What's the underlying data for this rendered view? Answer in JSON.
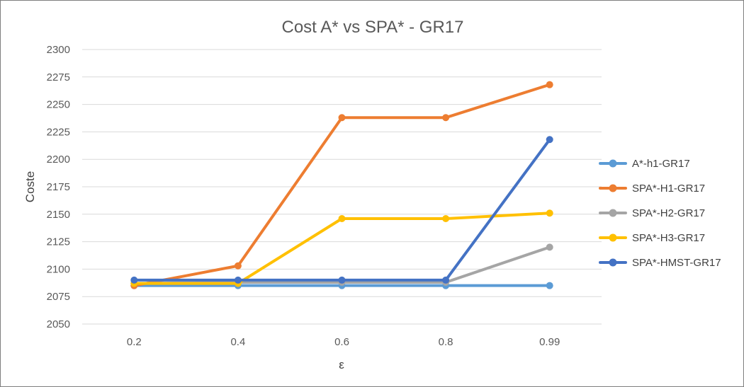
{
  "chart_data": {
    "type": "line",
    "title": "Cost A* vs SPA* - GR17",
    "xlabel": "ε",
    "ylabel": "Coste",
    "categories": [
      "0.2",
      "0.4",
      "0.6",
      "0.8",
      "0.99"
    ],
    "ylim": [
      2050,
      2300
    ],
    "yticks": [
      "2050",
      "2075",
      "2100",
      "2125",
      "2150",
      "2175",
      "2200",
      "2225",
      "2250",
      "2275",
      "2300"
    ],
    "grid": true,
    "legend_position": "right",
    "series": [
      {
        "name": "A*-h1-GR17",
        "color": "#5b9bd5",
        "values": [
          2085,
          2085,
          2085,
          2085,
          2085
        ]
      },
      {
        "name": "SPA*-H1-GR17",
        "color": "#ed7d31",
        "values": [
          2085,
          2103,
          2238,
          2238,
          2268
        ]
      },
      {
        "name": "SPA*-H2-GR17",
        "color": "#a5a5a5",
        "values": [
          2087,
          2088,
          2088,
          2088,
          2120
        ]
      },
      {
        "name": "SPA*-H3-GR17",
        "color": "#ffc000",
        "values": [
          2087,
          2087,
          2146,
          2146,
          2151
        ]
      },
      {
        "name": "SPA*-HMST-GR17",
        "color": "#4472c4",
        "values": [
          2090,
          2090,
          2090,
          2090,
          2218
        ]
      }
    ]
  }
}
